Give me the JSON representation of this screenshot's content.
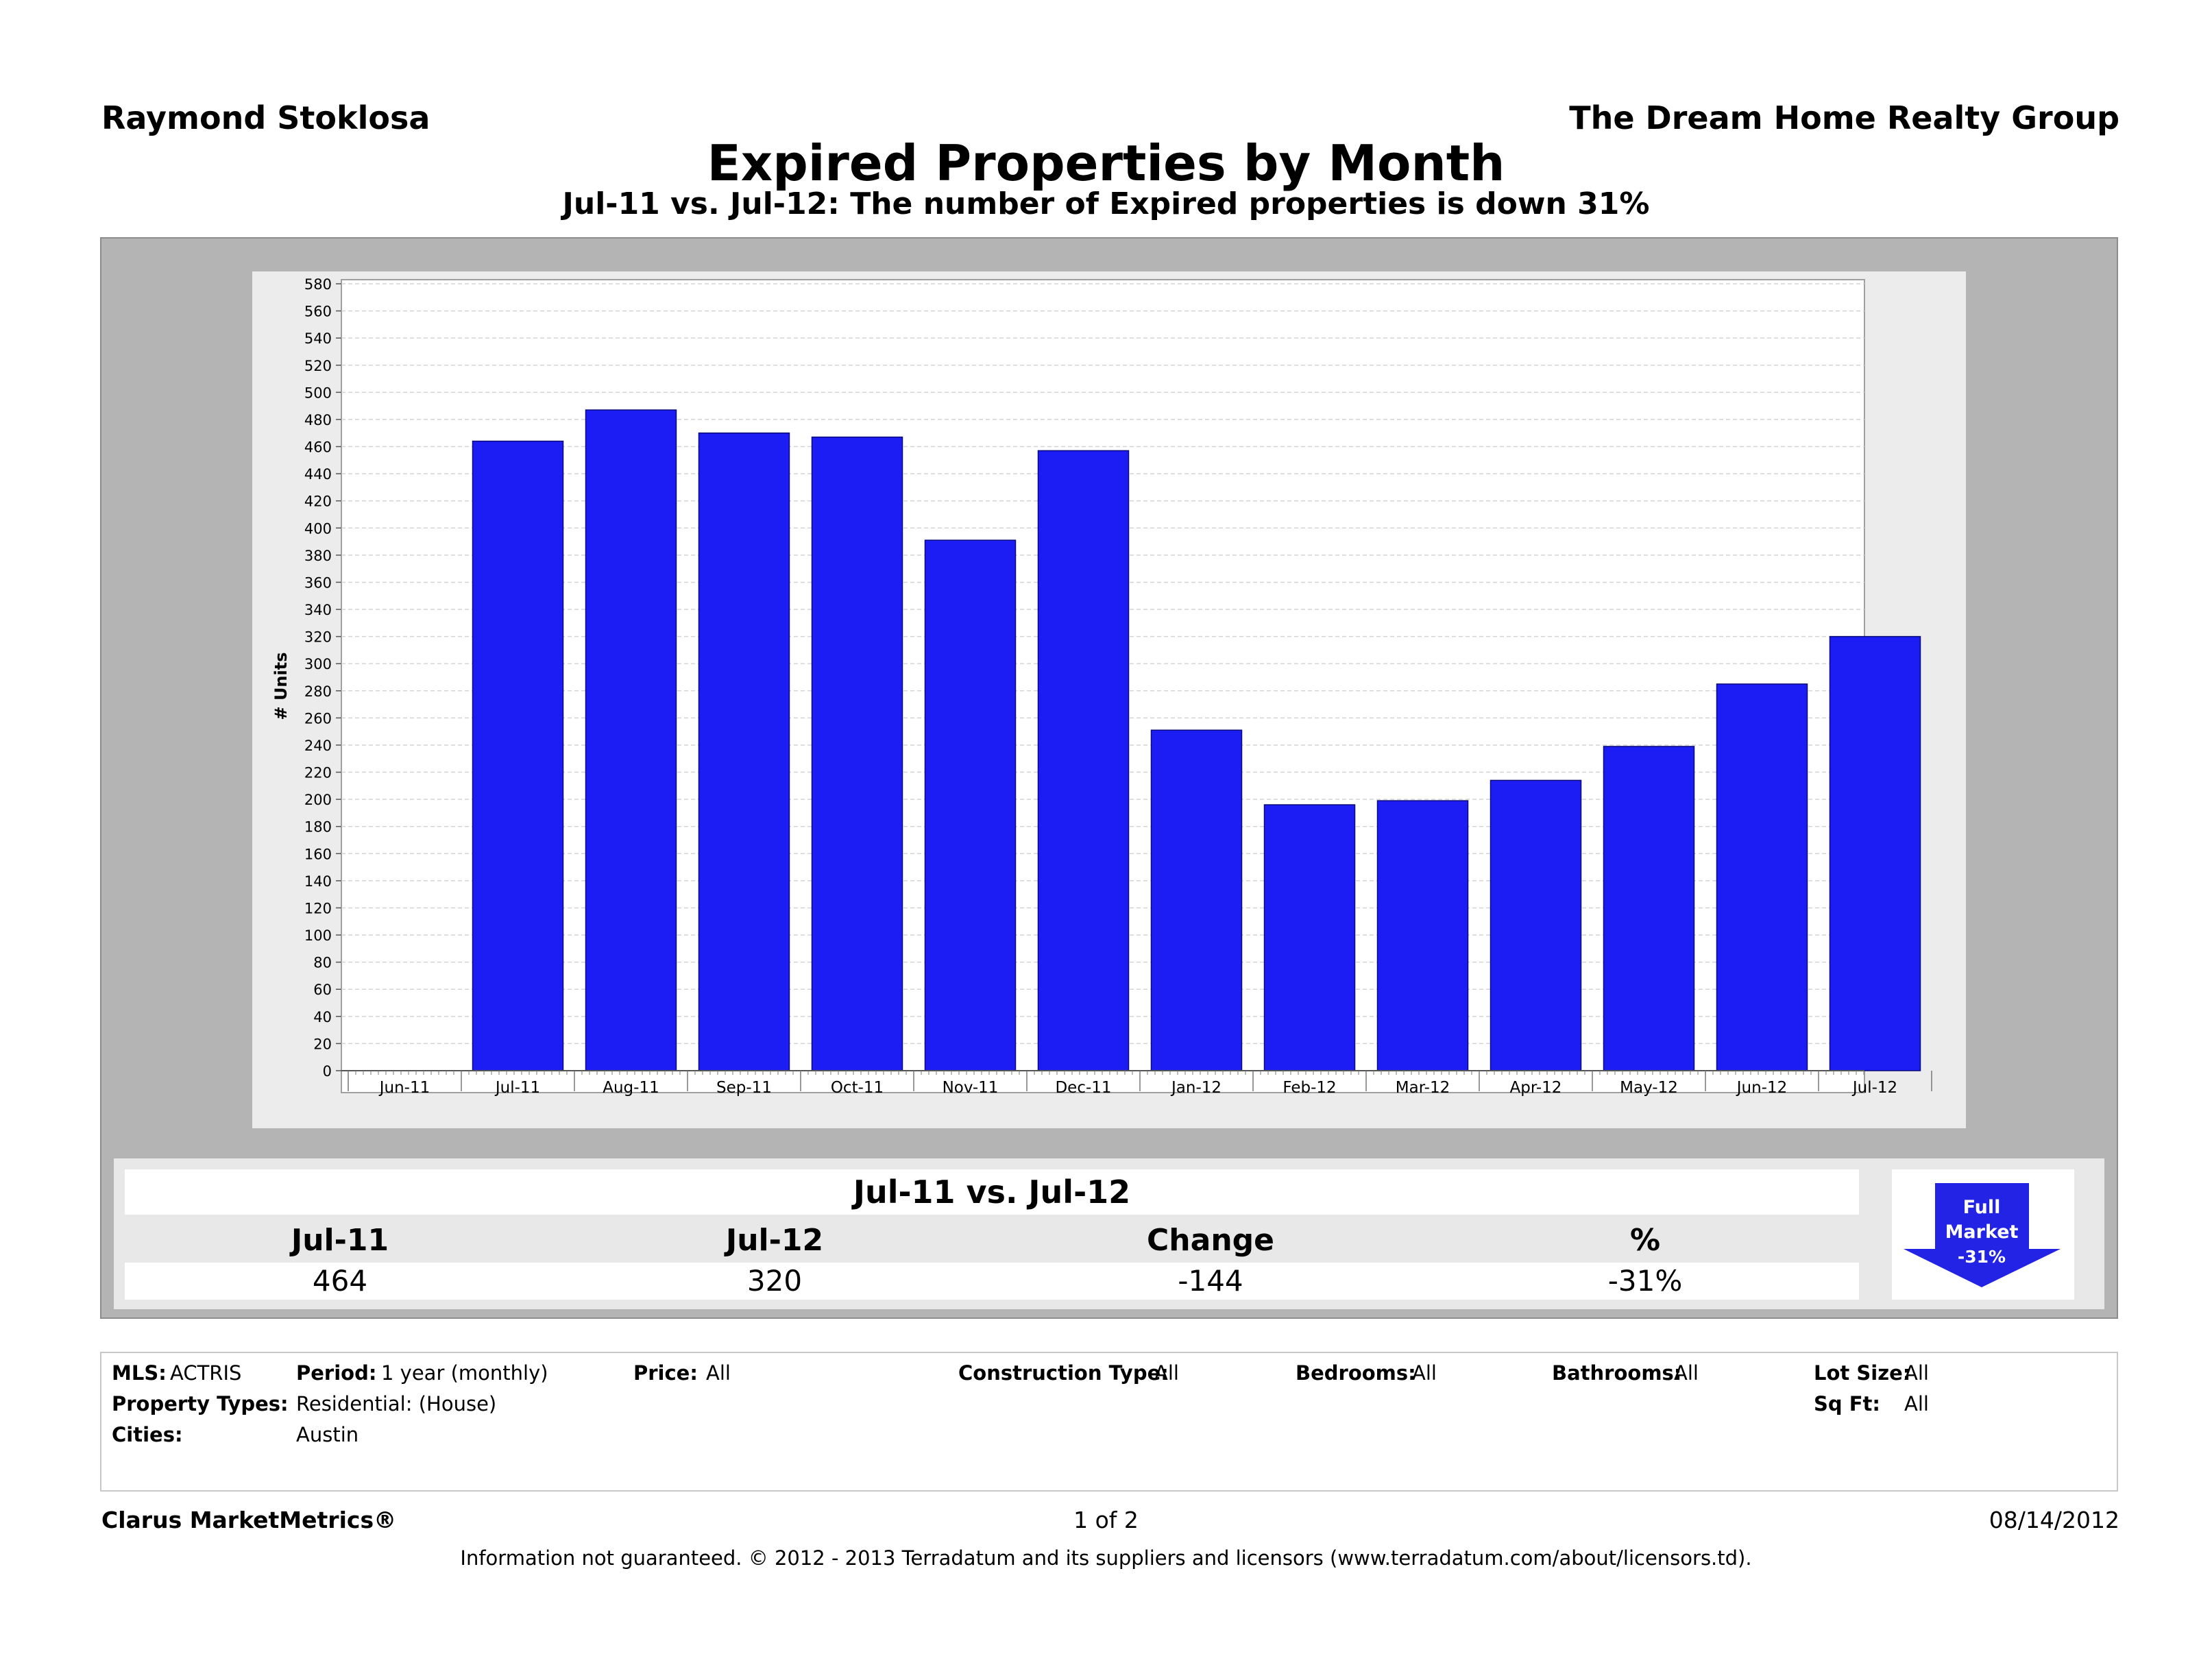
{
  "header": {
    "agent_name": "Raymond Stoklosa",
    "company_name": "The Dream Home Realty Group"
  },
  "chart_data": {
    "type": "bar",
    "title": "Expired Properties by Month",
    "subtitle": "Jul-11 vs. Jul-12: The number of Expired properties is down 31%",
    "ylabel": "# Units",
    "xlabel": "",
    "ylim": [
      0,
      580
    ],
    "ytick_step": 20,
    "grid": true,
    "x_axis_labels": [
      "Jun-11",
      "Jul-11",
      "Aug-11",
      "Sep-11",
      "Oct-11",
      "Nov-11",
      "Dec-11",
      "Jan-12",
      "Feb-12",
      "Mar-12",
      "Apr-12",
      "May-12",
      "Jun-12",
      "Jul-12"
    ],
    "categories": [
      "Jul-11",
      "Aug-11",
      "Sep-11",
      "Oct-11",
      "Nov-11",
      "Dec-11",
      "Jan-12",
      "Feb-12",
      "Mar-12",
      "Apr-12",
      "May-12",
      "Jun-12",
      "Jul-12"
    ],
    "values": [
      464,
      487,
      470,
      467,
      391,
      457,
      251,
      196,
      199,
      214,
      239,
      285,
      320
    ],
    "bar_color": "#1c1cf5"
  },
  "summary": {
    "title": "Jul-11 vs. Jul-12",
    "headers": [
      "Jul-11",
      "Jul-12",
      "Change",
      "%"
    ],
    "values": [
      "464",
      "320",
      "-144",
      "-31%"
    ]
  },
  "badge": {
    "line1": "Full",
    "line2": "Market",
    "line3": "-31%",
    "color": "#2323e6",
    "icon": "down-arrow-icon"
  },
  "filters": {
    "mls_label": "MLS:",
    "mls_value": "ACTRIS",
    "period_label": "Period:",
    "period_value": "1 year (monthly)",
    "price_label": "Price:",
    "price_value": "All",
    "construction_label": "Construction Type:",
    "construction_value": "All",
    "bedrooms_label": "Bedrooms:",
    "bedrooms_value": "All",
    "bathrooms_label": "Bathrooms:",
    "bathrooms_value": "All",
    "lot_size_label": "Lot Size:",
    "lot_size_value": "All",
    "property_types_label": "Property Types:",
    "property_types_value": "Residential: (House)",
    "sqft_label": "Sq Ft:",
    "sqft_value": "All",
    "cities_label": "Cities:",
    "cities_value": "Austin"
  },
  "footer": {
    "brand": "Clarus MarketMetrics®",
    "page": "1 of 2",
    "date": "08/14/2012",
    "disclaimer": "Information not guaranteed.  © 2012 - 2013 Terradatum and its suppliers and licensors (www.terradatum.com/about/licensors.td)."
  }
}
